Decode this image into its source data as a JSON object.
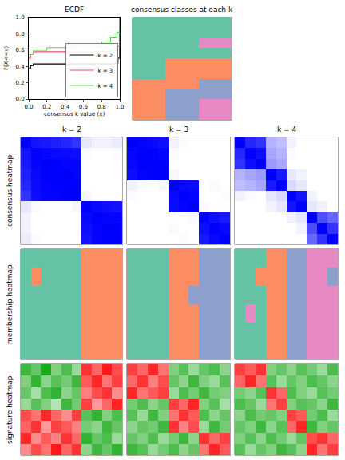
{
  "chart_data": [
    {
      "type": "line",
      "title": "ECDF",
      "xlabel": "consensus k value (x)",
      "ylabel": "F(X<=x)",
      "xlim": [
        0,
        1
      ],
      "ylim": [
        0,
        1
      ],
      "xticks": [
        {
          "value": 0,
          "label": "0.0"
        },
        0.2,
        0.4,
        0.6,
        0.8,
        {
          "value": 1,
          "label": "1.0"
        }
      ],
      "yticks": [
        {
          "value": 0,
          "label": "0.0"
        },
        0.2,
        0.4,
        0.6,
        0.8,
        {
          "value": 1,
          "label": "1.0"
        }
      ],
      "legend": "bottom right",
      "line_style": "step",
      "series": [
        {
          "name": "k = 2",
          "color": "#000000",
          "x": [
            0,
            0.02,
            0.05,
            0.95,
            0.98,
            1
          ],
          "values": [
            0.38,
            0.41,
            0.43,
            0.44,
            0.5,
            1
          ]
        },
        {
          "name": "k = 3",
          "color": "#DF536B",
          "x": [
            0,
            0.02,
            0.05,
            0.9,
            0.97,
            1
          ],
          "values": [
            0.5,
            0.55,
            0.58,
            0.6,
            0.65,
            1
          ]
        },
        {
          "name": "k = 4",
          "color": "#61D04F",
          "x": [
            0,
            0.05,
            0.2,
            0.5,
            0.8,
            0.9,
            0.97,
            1
          ],
          "values": [
            0.55,
            0.6,
            0.63,
            0.65,
            0.7,
            0.76,
            0.82,
            1
          ]
        }
      ]
    },
    {
      "type": "heatmap",
      "title": "consensus classes at each k",
      "tick_labels": false,
      "colors": [
        "#66C2A5",
        "#FC8D62",
        "#8DA0CB",
        "#E78AC3"
      ],
      "cells": [
        [
          1,
          1,
          1
        ],
        [
          1,
          1,
          1
        ],
        [
          1,
          1,
          4
        ],
        [
          1,
          1,
          1
        ],
        [
          1,
          2,
          2
        ],
        [
          1,
          2,
          2
        ],
        [
          2,
          2,
          3
        ],
        [
          2,
          3,
          3
        ],
        [
          2,
          3,
          4
        ],
        [
          2,
          3,
          4
        ]
      ]
    },
    {
      "type": "heatmap",
      "title": "k = 2",
      "ylabel": "consensus heatmap",
      "tick_labels": false,
      "zlim": [
        0,
        1
      ],
      "colors": [
        "#FFFFFF",
        "#0000FF"
      ],
      "cells": [
        [
          1,
          0.92,
          0.9,
          0.88,
          0.85,
          0.8,
          0.1,
          0.05,
          0.05,
          0.08
        ],
        [
          0.92,
          1,
          0.98,
          0.97,
          0.96,
          0.95,
          0.02,
          0,
          0,
          0.01
        ],
        [
          0.9,
          0.98,
          1,
          1,
          0.99,
          0.98,
          0,
          0,
          0,
          0
        ],
        [
          0.88,
          0.97,
          1,
          1,
          1,
          0.99,
          0,
          0,
          0,
          0
        ],
        [
          0.85,
          0.96,
          0.99,
          1,
          1,
          1,
          0,
          0,
          0,
          0
        ],
        [
          0.8,
          0.95,
          0.98,
          0.99,
          1,
          1,
          0.03,
          0,
          0,
          0
        ],
        [
          0.1,
          0.02,
          0,
          0,
          0,
          0.03,
          1,
          0.97,
          0.95,
          0.93
        ],
        [
          0.05,
          0,
          0,
          0,
          0,
          0,
          0.97,
          1,
          0.99,
          0.98
        ],
        [
          0.05,
          0,
          0,
          0,
          0,
          0,
          0.95,
          0.99,
          1,
          1
        ],
        [
          0.08,
          0.01,
          0,
          0,
          0,
          0,
          0.93,
          0.98,
          1,
          1
        ]
      ]
    },
    {
      "type": "heatmap",
      "title": "k = 3",
      "tick_labels": false,
      "zlim": [
        0,
        1
      ],
      "colors": [
        "#FFFFFF",
        "#0000FF"
      ],
      "cells": [
        [
          1,
          0.98,
          0.97,
          0.95,
          0.05,
          0.02,
          0,
          0,
          0,
          0
        ],
        [
          0.98,
          1,
          1,
          0.99,
          0.02,
          0,
          0,
          0,
          0,
          0
        ],
        [
          0.97,
          1,
          1,
          1,
          0,
          0,
          0,
          0,
          0,
          0
        ],
        [
          0.95,
          0.99,
          1,
          1,
          0.03,
          0,
          0,
          0,
          0,
          0
        ],
        [
          0.05,
          0.02,
          0,
          0.03,
          1,
          0.97,
          0.96,
          0,
          0.02,
          0
        ],
        [
          0.02,
          0,
          0,
          0,
          0.97,
          1,
          0.99,
          0,
          0,
          0.01
        ],
        [
          0,
          0,
          0,
          0,
          0.96,
          0.99,
          1,
          0.02,
          0,
          0
        ],
        [
          0,
          0,
          0,
          0,
          0,
          0,
          0.02,
          1,
          0.95,
          0.9
        ],
        [
          0,
          0,
          0,
          0,
          0.02,
          0,
          0,
          0.95,
          1,
          0.97
        ],
        [
          0,
          0,
          0,
          0,
          0,
          0.01,
          0,
          0.9,
          0.97,
          1
        ]
      ]
    },
    {
      "type": "heatmap",
      "title": "k = 4",
      "tick_labels": false,
      "zlim": [
        0,
        1
      ],
      "colors": [
        "#FFFFFF",
        "#0000FF"
      ],
      "cells": [
        [
          1,
          0.85,
          0.8,
          0.3,
          0.25,
          0.05,
          0,
          0,
          0,
          0
        ],
        [
          0.85,
          1,
          0.95,
          0.35,
          0.3,
          0.02,
          0,
          0,
          0,
          0
        ],
        [
          0.8,
          0.95,
          1,
          0.4,
          0.35,
          0,
          0,
          0,
          0,
          0
        ],
        [
          0.3,
          0.35,
          0.4,
          1,
          0.9,
          0.1,
          0.05,
          0,
          0,
          0
        ],
        [
          0.25,
          0.3,
          0.35,
          0.9,
          1,
          0.15,
          0.1,
          0,
          0,
          0
        ],
        [
          0.05,
          0.02,
          0,
          0.1,
          0.15,
          1,
          0.92,
          0.05,
          0,
          0
        ],
        [
          0,
          0,
          0,
          0.05,
          0.1,
          0.92,
          1,
          0.1,
          0.05,
          0
        ],
        [
          0,
          0,
          0,
          0,
          0,
          0.05,
          0.1,
          1,
          0.7,
          0.6
        ],
        [
          0,
          0,
          0,
          0,
          0,
          0,
          0.05,
          0.7,
          1,
          0.8
        ],
        [
          0,
          0,
          0,
          0,
          0,
          0,
          0,
          0.6,
          0.8,
          1
        ]
      ]
    },
    {
      "type": "heatmap",
      "ylabel": "membership heatmap",
      "tick_labels": false,
      "colors": [
        "#66C2A5",
        "#FC8D62"
      ],
      "cells": [
        [
          1,
          1,
          1,
          1,
          1,
          1,
          2,
          2,
          2,
          2
        ],
        [
          1,
          2,
          1,
          1,
          1,
          1,
          2,
          2,
          2,
          2
        ],
        [
          1,
          1,
          1,
          1,
          1,
          1,
          2,
          2,
          2,
          2
        ],
        [
          1,
          1,
          1,
          1,
          1,
          1,
          2,
          2,
          2,
          2
        ],
        [
          1,
          1,
          1,
          1,
          1,
          1,
          2,
          2,
          2,
          2
        ],
        [
          1,
          1,
          1,
          1,
          1,
          1,
          2,
          2,
          2,
          2
        ]
      ]
    },
    {
      "type": "heatmap",
      "tick_labels": false,
      "colors": [
        "#66C2A5",
        "#FC8D62",
        "#8DA0CB"
      ],
      "cells": [
        [
          1,
          1,
          1,
          1,
          2,
          2,
          2,
          3,
          3,
          3
        ],
        [
          1,
          1,
          1,
          1,
          2,
          2,
          2,
          3,
          3,
          3
        ],
        [
          1,
          1,
          1,
          1,
          2,
          2,
          3,
          3,
          3,
          3
        ],
        [
          1,
          1,
          1,
          1,
          2,
          2,
          2,
          3,
          3,
          3
        ],
        [
          1,
          1,
          1,
          1,
          2,
          2,
          2,
          3,
          3,
          3
        ],
        [
          1,
          1,
          1,
          1,
          2,
          2,
          2,
          3,
          3,
          3
        ]
      ]
    },
    {
      "type": "heatmap",
      "tick_labels": false,
      "colors": [
        "#66C2A5",
        "#FC8D62",
        "#8DA0CB",
        "#E78AC3"
      ],
      "cells": [
        [
          1,
          1,
          1,
          2,
          2,
          3,
          3,
          4,
          4,
          4
        ],
        [
          1,
          1,
          2,
          2,
          2,
          3,
          3,
          4,
          4,
          3
        ],
        [
          1,
          1,
          1,
          2,
          2,
          3,
          3,
          4,
          4,
          4
        ],
        [
          1,
          4,
          1,
          2,
          2,
          3,
          3,
          4,
          4,
          4
        ],
        [
          1,
          1,
          1,
          2,
          2,
          3,
          3,
          4,
          4,
          4
        ],
        [
          1,
          1,
          1,
          2,
          2,
          3,
          3,
          4,
          4,
          4
        ]
      ]
    },
    {
      "type": "heatmap",
      "ylabel": "signature heatmap",
      "tick_labels": false,
      "zlim": [
        -2,
        2
      ],
      "colors": [
        "#00A000",
        "#FFFFFF",
        "#FF0000"
      ],
      "cells": [
        [
          -1.5,
          -1.2,
          -1.8,
          -1,
          -1.4,
          -0.8,
          1.6,
          1.2,
          1.8,
          1.4
        ],
        [
          -1,
          -1.6,
          -0.9,
          -1.3,
          -1.1,
          -1.5,
          1.3,
          1.7,
          1.1,
          1.5
        ],
        [
          -1.2,
          -0.7,
          -1.4,
          -1.6,
          -0.9,
          -1.2,
          1,
          1.4,
          1.6,
          0.9
        ],
        [
          -0.8,
          -1.3,
          -1,
          -0.6,
          -1.5,
          -1.1,
          1.5,
          0.8,
          1.2,
          1.7
        ],
        [
          1.4,
          1.1,
          1.7,
          1.2,
          0.9,
          1.5,
          -1.3,
          -1.6,
          -1,
          -1.4
        ],
        [
          1.2,
          1.6,
          0.8,
          1.5,
          1.3,
          1,
          -1.1,
          -0.9,
          -1.5,
          -1.2
        ],
        [
          1.7,
          0.9,
          1.3,
          1,
          1.6,
          1.2,
          -1.6,
          -1.2,
          -1.4,
          -0.8
        ],
        [
          0.9,
          1.4,
          1.1,
          1.8,
          1.2,
          1.6,
          -0.9,
          -1.5,
          -1.2,
          -1.6
        ]
      ]
    },
    {
      "type": "heatmap",
      "tick_labels": false,
      "zlim": [
        -2,
        2
      ],
      "colors": [
        "#00A000",
        "#FFFFFF",
        "#FF0000"
      ],
      "cells": [
        [
          1.5,
          1.2,
          1.7,
          1.1,
          -1,
          -1.3,
          -0.8,
          -1.2,
          -1.4,
          -0.9
        ],
        [
          1.2,
          1.6,
          1,
          1.4,
          -1.2,
          -0.9,
          -1.5,
          -1,
          -0.8,
          -1.3
        ],
        [
          1.7,
          1.1,
          1.3,
          1.5,
          -0.8,
          -1.4,
          -1.1,
          -1.5,
          -1.1,
          -1
        ],
        [
          -1.1,
          -1.4,
          -0.9,
          -1.2,
          1.5,
          1.2,
          1.7,
          -1,
          -1.3,
          -0.7
        ],
        [
          -1.3,
          -0.8,
          -1.5,
          -1,
          1.1,
          1.6,
          1.3,
          -1.4,
          -0.9,
          -1.2
        ],
        [
          -0.9,
          -1.2,
          -1.1,
          -1.5,
          1.6,
          1,
          1.4,
          -0.8,
          -1.5,
          -1.1
        ],
        [
          -1.2,
          -1,
          -1.4,
          -0.8,
          -1.1,
          -1.5,
          -0.9,
          1.6,
          1.2,
          1.5
        ],
        [
          -1.5,
          -1.3,
          -0.8,
          -1.1,
          -1.4,
          -0.9,
          -1.2,
          1.1,
          1.7,
          1.3
        ]
      ]
    },
    {
      "type": "heatmap",
      "tick_labels": false,
      "zlim": [
        -2,
        2
      ],
      "colors": [
        "#00A000",
        "#FFFFFF",
        "#FF0000"
      ],
      "cells": [
        [
          1.5,
          1.3,
          1.6,
          -1,
          -1.2,
          -0.9,
          -1.3,
          -1.1,
          -0.8,
          -1.4
        ],
        [
          1.2,
          1.7,
          1.1,
          -1.3,
          -0.8,
          -1.2,
          -1,
          -1.4,
          -1.2,
          -0.9
        ],
        [
          -1.1,
          -0.9,
          -1.3,
          1.6,
          1.2,
          -1.4,
          -1,
          -0.8,
          -1.3,
          -1.1
        ],
        [
          -1.4,
          -1.2,
          -0.8,
          1.1,
          1.5,
          -1,
          -1.3,
          -1.2,
          -0.9,
          -1.5
        ],
        [
          -0.9,
          -1.4,
          -1.1,
          -1.2,
          -1,
          1.5,
          1.3,
          -1.1,
          -1.4,
          -0.8
        ],
        [
          -1.2,
          -1,
          -1.5,
          -0.9,
          -1.3,
          1.2,
          1.7,
          -1.5,
          -1,
          -1.2
        ],
        [
          -1,
          -1.3,
          -0.9,
          -1.4,
          -1.1,
          -0.8,
          -1.2,
          1.4,
          1.6,
          1.2
        ],
        [
          -1.3,
          -0.8,
          -1.2,
          -1,
          -1.5,
          -1.3,
          -0.9,
          1.7,
          1.1,
          1.5
        ]
      ]
    }
  ]
}
